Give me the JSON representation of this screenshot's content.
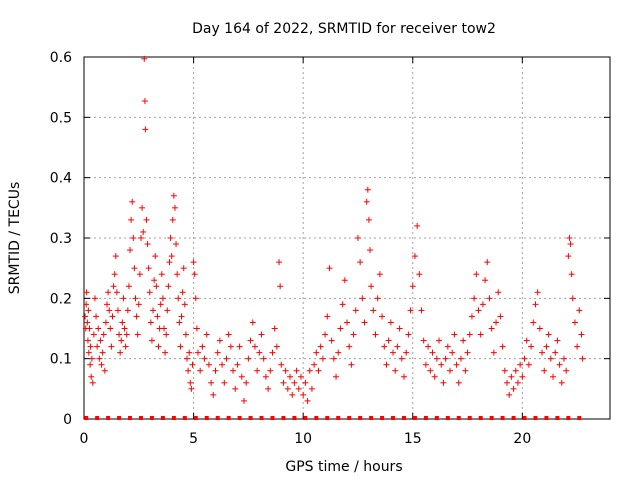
{
  "chart_data": {
    "type": "scatter",
    "title": "Day 164 of 2022, SRMTID for receiver tow2",
    "xlabel": "GPS time / hours",
    "ylabel": "SRMTID / TECUs",
    "xlim": [
      0,
      24
    ],
    "ylim": [
      0,
      0.6
    ],
    "x_ticks": [
      "0",
      "5",
      "10",
      "15",
      "20"
    ],
    "y_ticks": [
      "0",
      "0.1",
      "0.2",
      "0.3",
      "0.4",
      "0.5",
      "0.6"
    ],
    "grid": true,
    "marker": "plus",
    "color": "#ff0000",
    "series": [
      {
        "name": "SRMTID",
        "points": [
          [
            0.05,
            0.17
          ],
          [
            0.08,
            0.15
          ],
          [
            0.1,
            0.19
          ],
          [
            0.12,
            0.21
          ],
          [
            0.15,
            0.16
          ],
          [
            0.18,
            0.13
          ],
          [
            0.2,
            0.18
          ],
          [
            0.22,
            0.11
          ],
          [
            0.25,
            0.15
          ],
          [
            0.28,
            0.09
          ],
          [
            0.3,
            0.12
          ],
          [
            0.33,
            0.07
          ],
          [
            0.36,
            0.1
          ],
          [
            0.4,
            0.06
          ],
          [
            0.45,
            0.14
          ],
          [
            0.5,
            0.2
          ],
          [
            0.55,
            0.17
          ],
          [
            0.6,
            0.12
          ],
          [
            0.65,
            0.15
          ],
          [
            0.7,
            0.1
          ],
          [
            0.75,
            0.13
          ],
          [
            0.8,
            0.09
          ],
          [
            0.85,
            0.11
          ],
          [
            0.9,
            0.14
          ],
          [
            0.95,
            0.08
          ],
          [
            1.0,
            0.16
          ],
          [
            1.05,
            0.19
          ],
          [
            1.1,
            0.21
          ],
          [
            1.15,
            0.18
          ],
          [
            1.2,
            0.15
          ],
          [
            1.25,
            0.12
          ],
          [
            1.3,
            0.17
          ],
          [
            1.35,
            0.22
          ],
          [
            1.4,
            0.24
          ],
          [
            1.45,
            0.27
          ],
          [
            1.5,
            0.21
          ],
          [
            1.55,
            0.18
          ],
          [
            1.6,
            0.14
          ],
          [
            1.65,
            0.11
          ],
          [
            1.7,
            0.13
          ],
          [
            1.75,
            0.16
          ],
          [
            1.8,
            0.2
          ],
          [
            1.85,
            0.15
          ],
          [
            1.9,
            0.12
          ],
          [
            1.95,
            0.14
          ],
          [
            2.0,
            0.18
          ],
          [
            2.05,
            0.22
          ],
          [
            2.1,
            0.28
          ],
          [
            2.15,
            0.33
          ],
          [
            2.2,
            0.36
          ],
          [
            2.25,
            0.3
          ],
          [
            2.3,
            0.25
          ],
          [
            2.35,
            0.2
          ],
          [
            2.4,
            0.17
          ],
          [
            2.45,
            0.14
          ],
          [
            2.5,
            0.19
          ],
          [
            2.55,
            0.24
          ],
          [
            2.6,
            0.3
          ],
          [
            2.65,
            0.35
          ],
          [
            2.7,
            0.31
          ],
          [
            2.75,
            0.597
          ],
          [
            2.78,
            0.527
          ],
          [
            2.8,
            0.48
          ],
          [
            2.85,
            0.33
          ],
          [
            2.9,
            0.29
          ],
          [
            2.95,
            0.25
          ],
          [
            3.0,
            0.21
          ],
          [
            3.05,
            0.16
          ],
          [
            3.1,
            0.13
          ],
          [
            3.15,
            0.18
          ],
          [
            3.2,
            0.23
          ],
          [
            3.25,
            0.27
          ],
          [
            3.3,
            0.22
          ],
          [
            3.35,
            0.17
          ],
          [
            3.4,
            0.12
          ],
          [
            3.45,
            0.15
          ],
          [
            3.5,
            0.19
          ],
          [
            3.55,
            0.24
          ],
          [
            3.6,
            0.2
          ],
          [
            3.65,
            0.15
          ],
          [
            3.7,
            0.11
          ],
          [
            3.75,
            0.14
          ],
          [
            3.8,
            0.18
          ],
          [
            3.85,
            0.22
          ],
          [
            3.9,
            0.26
          ],
          [
            3.95,
            0.3
          ],
          [
            4.0,
            0.27
          ],
          [
            4.05,
            0.33
          ],
          [
            4.1,
            0.37
          ],
          [
            4.15,
            0.35
          ],
          [
            4.2,
            0.29
          ],
          [
            4.25,
            0.24
          ],
          [
            4.3,
            0.2
          ],
          [
            4.35,
            0.16
          ],
          [
            4.4,
            0.12
          ],
          [
            4.45,
            0.17
          ],
          [
            4.5,
            0.21
          ],
          [
            4.55,
            0.25
          ],
          [
            4.6,
            0.19
          ],
          [
            4.65,
            0.14
          ],
          [
            4.7,
            0.1
          ],
          [
            4.75,
            0.08
          ],
          [
            4.8,
            0.11
          ],
          [
            4.85,
            0.06
          ],
          [
            4.9,
            0.05
          ],
          [
            4.95,
            0.09
          ],
          [
            5.0,
            0.26
          ],
          [
            5.05,
            0.24
          ],
          [
            5.1,
            0.2
          ],
          [
            5.15,
            0.15
          ],
          [
            5.2,
            0.11
          ],
          [
            5.3,
            0.08
          ],
          [
            5.4,
            0.12
          ],
          [
            5.5,
            0.1
          ],
          [
            5.6,
            0.14
          ],
          [
            5.7,
            0.09
          ],
          [
            5.8,
            0.06
          ],
          [
            5.9,
            0.04
          ],
          [
            6.0,
            0.08
          ],
          [
            6.1,
            0.11
          ],
          [
            6.2,
            0.13
          ],
          [
            6.3,
            0.09
          ],
          [
            6.4,
            0.06
          ],
          [
            6.5,
            0.1
          ],
          [
            6.6,
            0.14
          ],
          [
            6.7,
            0.12
          ],
          [
            6.8,
            0.08
          ],
          [
            6.9,
            0.05
          ],
          [
            7.0,
            0.09
          ],
          [
            7.1,
            0.12
          ],
          [
            7.2,
            0.07
          ],
          [
            7.3,
            0.03
          ],
          [
            7.4,
            0.06
          ],
          [
            7.5,
            0.1
          ],
          [
            7.6,
            0.13
          ],
          [
            7.7,
            0.16
          ],
          [
            7.8,
            0.12
          ],
          [
            7.9,
            0.08
          ],
          [
            8.0,
            0.11
          ],
          [
            8.1,
            0.14
          ],
          [
            8.2,
            0.1
          ],
          [
            8.3,
            0.07
          ],
          [
            8.4,
            0.05
          ],
          [
            8.5,
            0.08
          ],
          [
            8.6,
            0.11
          ],
          [
            8.7,
            0.15
          ],
          [
            8.8,
            0.12
          ],
          [
            8.9,
            0.26
          ],
          [
            8.95,
            0.22
          ],
          [
            9.0,
            0.09
          ],
          [
            9.1,
            0.06
          ],
          [
            9.2,
            0.08
          ],
          [
            9.3,
            0.05
          ],
          [
            9.4,
            0.07
          ],
          [
            9.5,
            0.04
          ],
          [
            9.6,
            0.06
          ],
          [
            9.7,
            0.08
          ],
          [
            9.8,
            0.05
          ],
          [
            9.9,
            0.07
          ],
          [
            10.0,
            0.04
          ],
          [
            10.1,
            0.06
          ],
          [
            10.2,
            0.03
          ],
          [
            10.3,
            0.08
          ],
          [
            10.4,
            0.05
          ],
          [
            10.5,
            0.09
          ],
          [
            10.6,
            0.11
          ],
          [
            10.7,
            0.08
          ],
          [
            10.8,
            0.12
          ],
          [
            10.9,
            0.1
          ],
          [
            11.0,
            0.14
          ],
          [
            11.1,
            0.17
          ],
          [
            11.2,
            0.25
          ],
          [
            11.3,
            0.13
          ],
          [
            11.4,
            0.1
          ],
          [
            11.5,
            0.07
          ],
          [
            11.6,
            0.11
          ],
          [
            11.7,
            0.15
          ],
          [
            11.8,
            0.19
          ],
          [
            11.9,
            0.23
          ],
          [
            12.0,
            0.16
          ],
          [
            12.1,
            0.12
          ],
          [
            12.2,
            0.09
          ],
          [
            12.3,
            0.14
          ],
          [
            12.4,
            0.18
          ],
          [
            12.5,
            0.3
          ],
          [
            12.6,
            0.26
          ],
          [
            12.7,
            0.2
          ],
          [
            12.8,
            0.16
          ],
          [
            12.9,
            0.36
          ],
          [
            12.95,
            0.38
          ],
          [
            13.0,
            0.33
          ],
          [
            13.05,
            0.28
          ],
          [
            13.1,
            0.22
          ],
          [
            13.2,
            0.18
          ],
          [
            13.3,
            0.14
          ],
          [
            13.4,
            0.2
          ],
          [
            13.5,
            0.24
          ],
          [
            13.6,
            0.17
          ],
          [
            13.7,
            0.12
          ],
          [
            13.8,
            0.09
          ],
          [
            13.9,
            0.13
          ],
          [
            14.0,
            0.16
          ],
          [
            14.1,
            0.11
          ],
          [
            14.2,
            0.08
          ],
          [
            14.3,
            0.12
          ],
          [
            14.4,
            0.15
          ],
          [
            14.5,
            0.1
          ],
          [
            14.6,
            0.07
          ],
          [
            14.7,
            0.11
          ],
          [
            14.8,
            0.14
          ],
          [
            14.9,
            0.18
          ],
          [
            15.0,
            0.22
          ],
          [
            15.1,
            0.27
          ],
          [
            15.2,
            0.32
          ],
          [
            15.3,
            0.24
          ],
          [
            15.4,
            0.18
          ],
          [
            15.5,
            0.13
          ],
          [
            15.6,
            0.09
          ],
          [
            15.7,
            0.12
          ],
          [
            15.8,
            0.08
          ],
          [
            15.9,
            0.11
          ],
          [
            16.0,
            0.07
          ],
          [
            16.1,
            0.1
          ],
          [
            16.2,
            0.13
          ],
          [
            16.3,
            0.09
          ],
          [
            16.4,
            0.06
          ],
          [
            16.5,
            0.1
          ],
          [
            16.6,
            0.12
          ],
          [
            16.7,
            0.08
          ],
          [
            16.8,
            0.11
          ],
          [
            16.9,
            0.14
          ],
          [
            17.0,
            0.09
          ],
          [
            17.1,
            0.06
          ],
          [
            17.2,
            0.1
          ],
          [
            17.3,
            0.13
          ],
          [
            17.4,
            0.08
          ],
          [
            17.5,
            0.11
          ],
          [
            17.6,
            0.14
          ],
          [
            17.7,
            0.17
          ],
          [
            17.8,
            0.2
          ],
          [
            17.9,
            0.24
          ],
          [
            18.0,
            0.18
          ],
          [
            18.1,
            0.14
          ],
          [
            18.2,
            0.19
          ],
          [
            18.3,
            0.23
          ],
          [
            18.4,
            0.26
          ],
          [
            18.5,
            0.2
          ],
          [
            18.6,
            0.15
          ],
          [
            18.7,
            0.11
          ],
          [
            18.8,
            0.16
          ],
          [
            18.9,
            0.21
          ],
          [
            19.0,
            0.17
          ],
          [
            19.1,
            0.12
          ],
          [
            19.2,
            0.08
          ],
          [
            19.3,
            0.06
          ],
          [
            19.4,
            0.04
          ],
          [
            19.5,
            0.07
          ],
          [
            19.6,
            0.05
          ],
          [
            19.7,
            0.08
          ],
          [
            19.8,
            0.06
          ],
          [
            19.9,
            0.09
          ],
          [
            20.0,
            0.07
          ],
          [
            20.1,
            0.1
          ],
          [
            20.2,
            0.13
          ],
          [
            20.3,
            0.09
          ],
          [
            20.4,
            0.12
          ],
          [
            20.5,
            0.16
          ],
          [
            20.6,
            0.19
          ],
          [
            20.7,
            0.21
          ],
          [
            20.8,
            0.15
          ],
          [
            20.9,
            0.11
          ],
          [
            21.0,
            0.08
          ],
          [
            21.1,
            0.12
          ],
          [
            21.2,
            0.14
          ],
          [
            21.3,
            0.1
          ],
          [
            21.4,
            0.07
          ],
          [
            21.5,
            0.11
          ],
          [
            21.6,
            0.13
          ],
          [
            21.7,
            0.09
          ],
          [
            21.8,
            0.06
          ],
          [
            21.9,
            0.1
          ],
          [
            22.0,
            0.08
          ],
          [
            22.1,
            0.27
          ],
          [
            22.15,
            0.3
          ],
          [
            22.2,
            0.29
          ],
          [
            22.25,
            0.24
          ],
          [
            22.3,
            0.2
          ],
          [
            22.4,
            0.16
          ],
          [
            22.5,
            0.12
          ],
          [
            22.6,
            0.18
          ],
          [
            22.7,
            0.14
          ],
          [
            22.75,
            0.1
          ]
        ]
      }
    ],
    "baseline_markers_x": [
      0.1,
      0.6,
      1.1,
      1.6,
      2.1,
      2.6,
      3.1,
      3.6,
      4.1,
      4.6,
      5.1,
      5.6,
      6.1,
      6.6,
      7.1,
      7.6,
      8.1,
      8.6,
      9.1,
      9.6,
      10.1,
      10.6,
      11.1,
      11.6,
      12.1,
      12.6,
      13.1,
      13.6,
      14.1,
      14.6,
      15.1,
      15.6,
      16.1,
      16.6,
      17.1,
      17.6,
      18.1,
      18.6,
      19.1,
      19.6,
      20.1,
      20.6,
      21.1,
      21.6,
      22.1,
      22.6
    ]
  }
}
